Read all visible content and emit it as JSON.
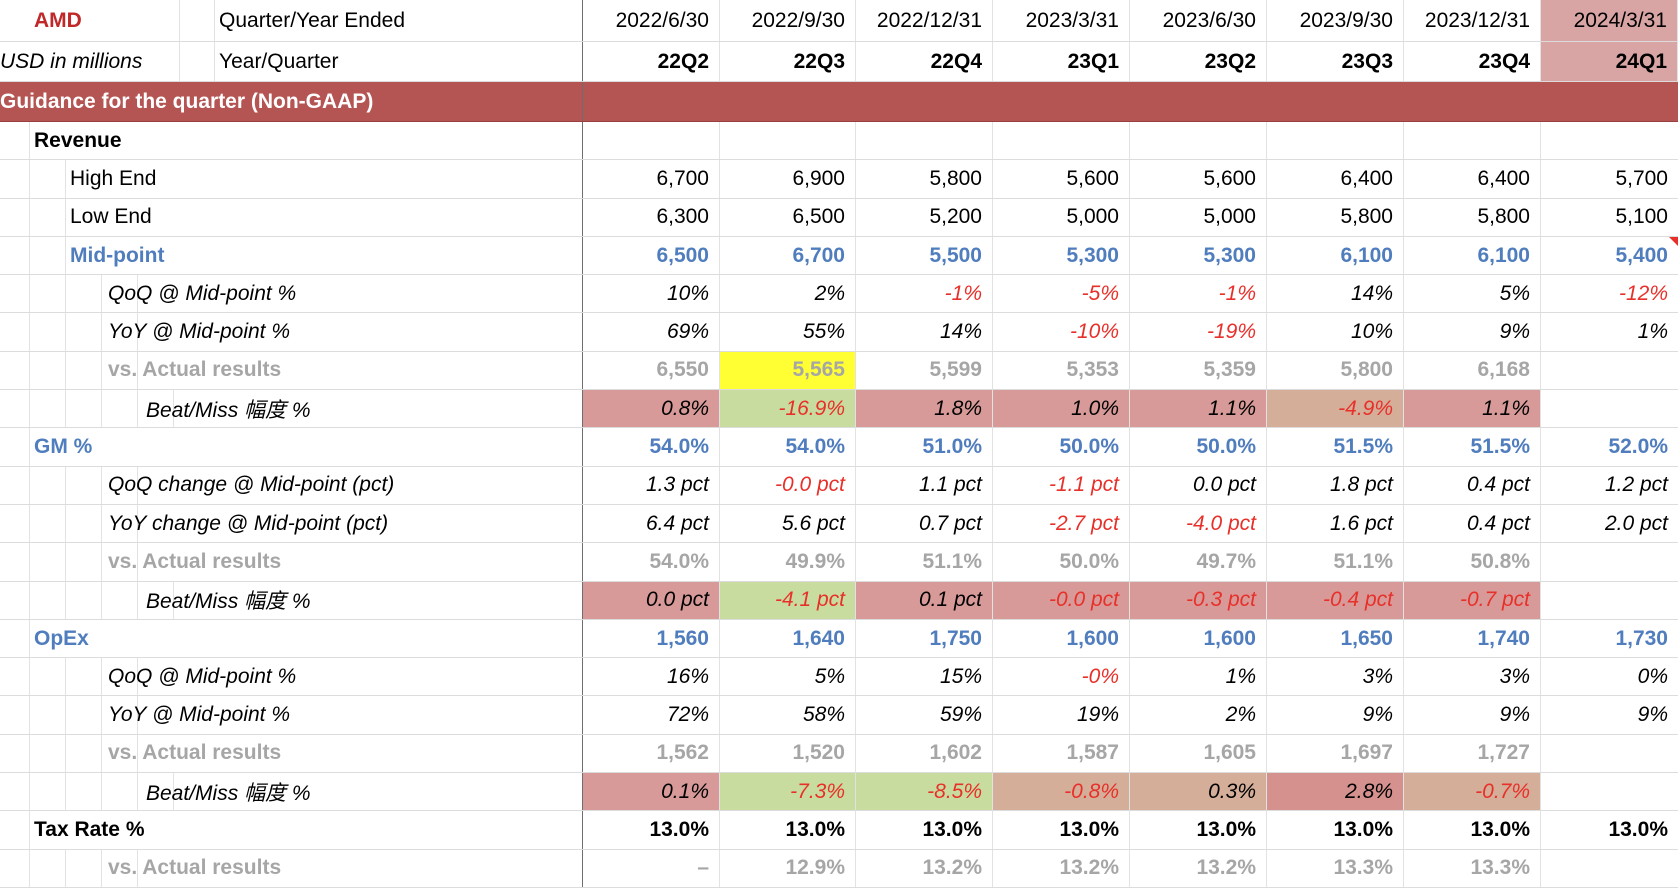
{
  "header": {
    "company": "AMD",
    "units": "USD in millions",
    "row1_label": "Quarter/Year Ended",
    "row2_label": "Year/Quarter",
    "dates": [
      "2022/6/30",
      "2022/9/30",
      "2022/12/31",
      "2023/3/31",
      "2023/6/30",
      "2023/9/30",
      "2023/12/31",
      "2024/3/31"
    ],
    "quarters": [
      "22Q2",
      "22Q3",
      "22Q4",
      "23Q1",
      "23Q2",
      "23Q3",
      "23Q4",
      "24Q1"
    ],
    "selected_column": 7
  },
  "section_title": "Guidance for the quarter (Non-GAAP)",
  "rows": [
    {
      "label": "Revenue",
      "indent": 1,
      "style": "boldblack",
      "values": [
        "",
        "",
        "",
        "",
        "",
        "",
        "",
        ""
      ]
    },
    {
      "label": "High End",
      "indent": 2,
      "style": "black",
      "values": [
        "6,700",
        "6,900",
        "5,800",
        "5,600",
        "5,600",
        "6,400",
        "6,400",
        "5,700"
      ]
    },
    {
      "label": "Low End",
      "indent": 2,
      "style": "black",
      "values": [
        "6,300",
        "6,500",
        "5,200",
        "5,000",
        "5,000",
        "5,800",
        "5,800",
        "5,100"
      ]
    },
    {
      "label": "Mid-point",
      "indent": 2,
      "style": "blue",
      "values": [
        "6,500",
        "6,700",
        "5,500",
        "5,300",
        "5,300",
        "6,100",
        "6,100",
        "5,400"
      ],
      "flag_col": 7
    },
    {
      "label": "QoQ @ Mid-point %",
      "indent": 3,
      "style": "italic",
      "values": [
        "10%",
        "2%",
        "-1%",
        "-5%",
        "-1%",
        "14%",
        "5%",
        "-12%"
      ]
    },
    {
      "label": "YoY @ Mid-point %",
      "indent": 3,
      "style": "italic",
      "values": [
        "69%",
        "55%",
        "14%",
        "-10%",
        "-19%",
        "10%",
        "9%",
        "1%"
      ]
    },
    {
      "label": "vs. Actual results",
      "indent": 3,
      "style": "gray",
      "values": [
        "6,550",
        "5,565",
        "5,599",
        "5,353",
        "5,359",
        "5,800",
        "6,168",
        ""
      ],
      "fills": [
        "",
        "yellow",
        "",
        "",
        "",
        "",
        "",
        ""
      ]
    },
    {
      "label": "Beat/Miss 幅度 %",
      "indent": 4,
      "style": "italic",
      "values": [
        "0.8%",
        "-16.9%",
        "1.8%",
        "1.0%",
        "1.1%",
        "-4.9%",
        "1.1%",
        ""
      ],
      "fills": [
        "red",
        "green",
        "red",
        "red",
        "red",
        "tan",
        "red",
        ""
      ]
    },
    {
      "label": "GM %",
      "indent": 1,
      "style": "blue",
      "values": [
        "54.0%",
        "54.0%",
        "51.0%",
        "50.0%",
        "50.0%",
        "51.5%",
        "51.5%",
        "52.0%"
      ]
    },
    {
      "label": "QoQ change @ Mid-point (pct)",
      "indent": 3,
      "style": "italic",
      "values": [
        "1.3 pct",
        "-0.0 pct",
        "1.1 pct",
        "-1.1 pct",
        "0.0 pct",
        "1.8 pct",
        "0.4 pct",
        "1.2 pct"
      ]
    },
    {
      "label": "YoY change @ Mid-point (pct)",
      "indent": 3,
      "style": "italic",
      "values": [
        "6.4 pct",
        "5.6 pct",
        "0.7 pct",
        "-2.7 pct",
        "-4.0 pct",
        "1.6 pct",
        "0.4 pct",
        "2.0 pct"
      ]
    },
    {
      "label": "vs. Actual results",
      "indent": 3,
      "style": "gray",
      "values": [
        "54.0%",
        "49.9%",
        "51.1%",
        "50.0%",
        "49.7%",
        "51.1%",
        "50.8%",
        ""
      ]
    },
    {
      "label": "Beat/Miss 幅度 %",
      "indent": 4,
      "style": "italic",
      "values": [
        "0.0 pct",
        "-4.1 pct",
        "0.1 pct",
        "-0.0 pct",
        "-0.3 pct",
        "-0.4 pct",
        "-0.7 pct",
        ""
      ],
      "fills": [
        "red",
        "green",
        "red",
        "red",
        "red",
        "red",
        "red",
        ""
      ]
    },
    {
      "label": "OpEx",
      "indent": 1,
      "style": "blue",
      "values": [
        "1,560",
        "1,640",
        "1,750",
        "1,600",
        "1,600",
        "1,650",
        "1,740",
        "1,730"
      ]
    },
    {
      "label": "QoQ @ Mid-point %",
      "indent": 3,
      "style": "italic",
      "values": [
        "16%",
        "5%",
        "15%",
        "-0%",
        "1%",
        "3%",
        "3%",
        "0%"
      ]
    },
    {
      "label": "YoY @ Mid-point %",
      "indent": 3,
      "style": "italic",
      "values": [
        "72%",
        "58%",
        "59%",
        "19%",
        "2%",
        "9%",
        "9%",
        "9%"
      ]
    },
    {
      "label": "vs. Actual results",
      "indent": 3,
      "style": "gray",
      "values": [
        "1,562",
        "1,520",
        "1,602",
        "1,587",
        "1,605",
        "1,697",
        "1,727",
        ""
      ]
    },
    {
      "label": "Beat/Miss 幅度 %",
      "indent": 4,
      "style": "italic",
      "values": [
        "0.1%",
        "-7.3%",
        "-8.5%",
        "-0.8%",
        "0.3%",
        "2.8%",
        "-0.7%",
        ""
      ],
      "fills": [
        "red",
        "green",
        "green",
        "tan",
        "tan",
        "rose",
        "tan",
        ""
      ]
    },
    {
      "label": "Tax Rate %",
      "indent": 1,
      "style": "boldblack",
      "values": [
        "13.0%",
        "13.0%",
        "13.0%",
        "13.0%",
        "13.0%",
        "13.0%",
        "13.0%",
        "13.0%"
      ]
    },
    {
      "label": "vs. Actual results",
      "indent": 3,
      "style": "gray",
      "values": [
        "–",
        "12.9%",
        "13.2%",
        "13.2%",
        "13.2%",
        "13.3%",
        "13.3%",
        ""
      ]
    }
  ]
}
